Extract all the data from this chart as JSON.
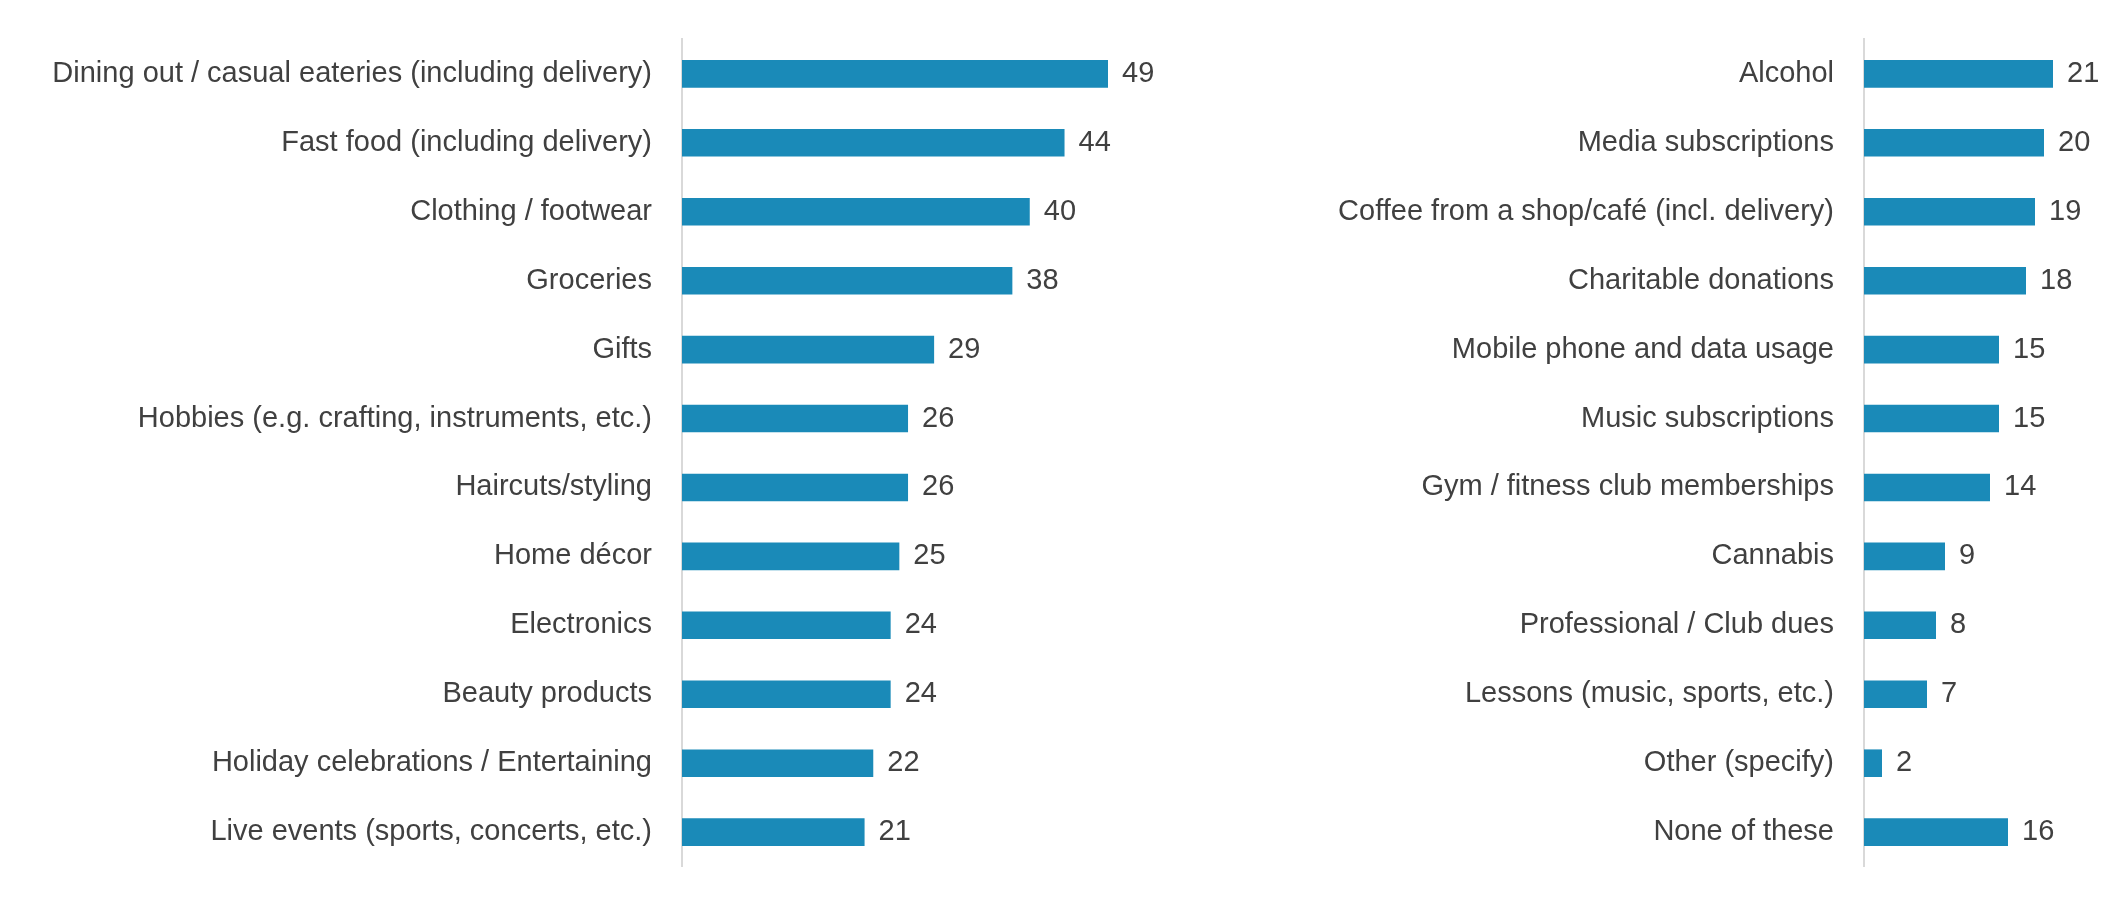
{
  "chart_data": [
    {
      "type": "bar",
      "orientation": "horizontal",
      "data_labels": true,
      "tick_labels": "y",
      "color": "#1a8ab8",
      "categories": [
        "Dining out / casual eateries (including delivery)",
        "Fast food (including delivery)",
        "Clothing / footwear",
        "Groceries",
        "Gifts",
        "Hobbies (e.g. crafting, instruments, etc.)",
        "Haircuts/styling",
        "Home décor",
        "Electronics",
        "Beauty products",
        "Holiday celebrations / Entertaining",
        "Live events (sports, concerts, etc.)"
      ],
      "values": [
        49,
        44,
        40,
        38,
        29,
        26,
        26,
        25,
        24,
        24,
        22,
        21
      ]
    },
    {
      "type": "bar",
      "orientation": "horizontal",
      "data_labels": true,
      "tick_labels": "y",
      "color": "#1a8ab8",
      "categories": [
        "Alcohol",
        "Media subscriptions",
        "Coffee from a shop/café (incl. delivery)",
        "Charitable donations",
        "Mobile phone and data usage",
        "Music subscriptions",
        "Gym / fitness club memberships",
        "Cannabis",
        "Professional / Club dues",
        "Lessons (music, sports, etc.)",
        "Other (specify)",
        "None of these"
      ],
      "values": [
        21,
        20,
        19,
        18,
        15,
        15,
        14,
        9,
        8,
        7,
        2,
        16
      ]
    }
  ]
}
